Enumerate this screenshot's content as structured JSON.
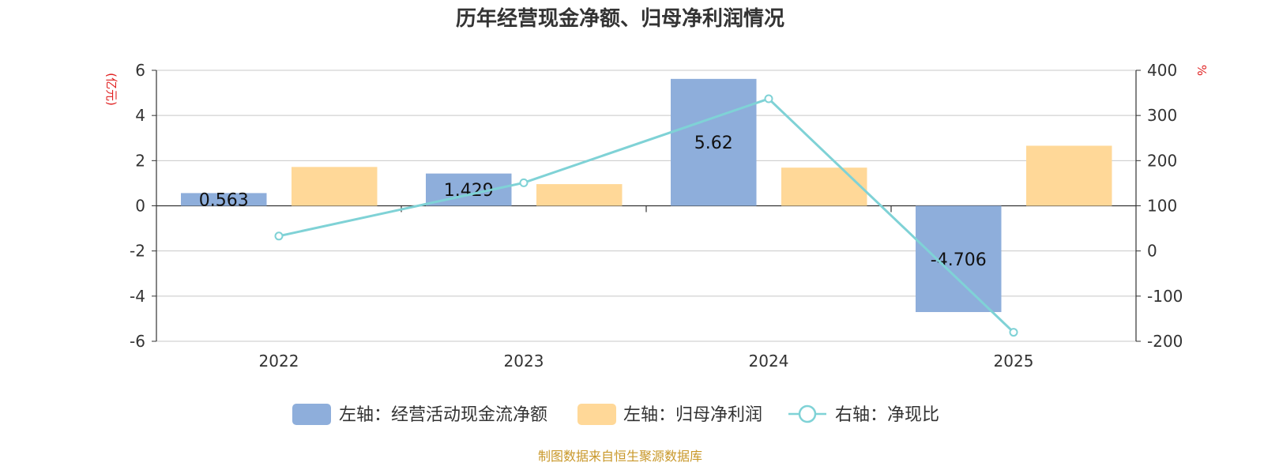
{
  "chart_data": {
    "type": "bar",
    "title": "历年经营现金净额、归母净利润情况",
    "categories": [
      "2022",
      "2023",
      "2024",
      "2025"
    ],
    "left_axis": {
      "unit": "(亿元)",
      "range": [
        -6,
        6
      ],
      "ticks": [
        "6",
        "4",
        "2",
        "0",
        "-2",
        "-4",
        "-6"
      ]
    },
    "right_axis": {
      "unit": "%",
      "range": [
        -200,
        400
      ],
      "ticks": [
        "400",
        "300",
        "200",
        "100",
        "0",
        "-100",
        "-200"
      ]
    },
    "series": [
      {
        "name": "左轴：经营活动现金流净额",
        "type": "bar",
        "axis": "left",
        "values": [
          0.563,
          1.429,
          5.62,
          -4.706
        ],
        "labels": [
          "0.563",
          "1.429",
          "5.62",
          "-4.706"
        ]
      },
      {
        "name": "左轴：归母净利润",
        "type": "bar",
        "axis": "left",
        "values": [
          1.72,
          0.96,
          1.69,
          2.66
        ]
      },
      {
        "name": "右轴：净现比",
        "type": "line",
        "axis": "right",
        "values": [
          33,
          151,
          337,
          -180
        ]
      }
    ],
    "grid": true,
    "legend_position": "bottom"
  },
  "colors": {
    "bar_cash": "#8eaedb",
    "bar_profit": "#ffd898",
    "line_ratio": "#7fd2d6",
    "unit_red": "#e02020",
    "source_gold": "#c9982a",
    "grid": "#c8c8c8",
    "axis": "#333333"
  },
  "footer": {
    "source": "制图数据来自恒生聚源数据库"
  }
}
